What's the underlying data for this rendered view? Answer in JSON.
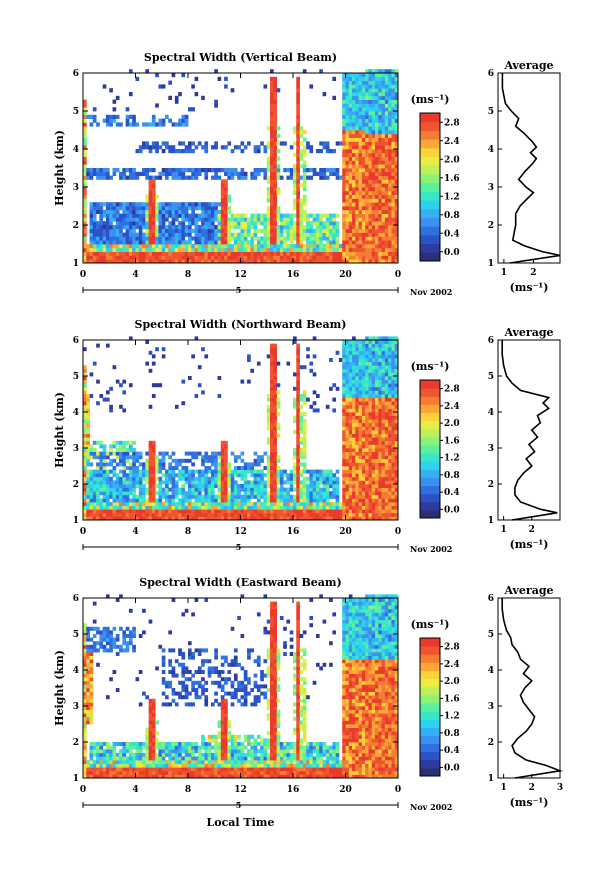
{
  "figure": {
    "date_label": "Nov 2002",
    "x_axis_title": "Local Time",
    "date_marker": "5",
    "colorbar_unit": "(ms⁻¹)"
  },
  "colors": {
    "scale": [
      "#2b2f73",
      "#2e3a9e",
      "#2c52c8",
      "#2f70e0",
      "#3c90ef",
      "#36b0f4",
      "#2dd3ee",
      "#39e7c8",
      "#5af0a0",
      "#8df278",
      "#bff05c",
      "#e6ee46",
      "#fbd23a",
      "#fba737",
      "#f57d33",
      "#ee5530",
      "#e93a2c"
    ],
    "low": "#ffffff"
  },
  "chart_data": [
    {
      "type": "heatmap",
      "title": "Spectral Width (Vertical Beam)",
      "ylabel": "Height (km)",
      "xlim": [
        0,
        24
      ],
      "ylim": [
        1,
        6
      ],
      "xticks": [
        "0",
        "4",
        "8",
        "12",
        "16",
        "20",
        "0"
      ],
      "yticks": [
        "1",
        "2",
        "3",
        "4",
        "5",
        "6"
      ],
      "colorbar": {
        "ticks": [
          "0.0",
          "0.4",
          "0.8",
          "1.2",
          "1.6",
          "2.0",
          "2.4",
          "2.8"
        ],
        "range": [
          0,
          2.8
        ]
      },
      "average": {
        "title": "Average",
        "xlabel": "(ms⁻¹)",
        "xticks": [
          "1",
          "2"
        ],
        "xlim": [
          0.8,
          2.9
        ],
        "profile": [
          [
            1.0,
            1.2
          ],
          [
            1.2,
            2.9
          ],
          [
            1.3,
            2.3
          ],
          [
            1.45,
            1.7
          ],
          [
            1.6,
            1.3
          ],
          [
            1.8,
            1.35
          ],
          [
            2.0,
            1.4
          ],
          [
            2.3,
            1.4
          ],
          [
            2.5,
            1.55
          ],
          [
            2.7,
            1.8
          ],
          [
            2.85,
            2.0
          ],
          [
            3.0,
            1.75
          ],
          [
            3.2,
            1.5
          ],
          [
            3.4,
            1.7
          ],
          [
            3.6,
            1.95
          ],
          [
            3.75,
            2.1
          ],
          [
            3.9,
            1.9
          ],
          [
            4.05,
            2.1
          ],
          [
            4.2,
            1.95
          ],
          [
            4.4,
            1.7
          ],
          [
            4.6,
            1.4
          ],
          [
            4.8,
            1.5
          ],
          [
            5.0,
            1.25
          ],
          [
            5.2,
            1.05
          ],
          [
            5.4,
            1.0
          ],
          [
            5.6,
            0.95
          ],
          [
            6.0,
            0.95
          ]
        ]
      }
    },
    {
      "type": "heatmap",
      "title": "Spectral Width (Northward Beam)",
      "ylabel": "Height (km)",
      "xlim": [
        0,
        24
      ],
      "ylim": [
        1,
        6
      ],
      "xticks": [
        "0",
        "4",
        "8",
        "12",
        "16",
        "20",
        "0"
      ],
      "yticks": [
        "1",
        "2",
        "3",
        "4",
        "5",
        "6"
      ],
      "colorbar": {
        "ticks": [
          "0.0",
          "0.4",
          "0.8",
          "1.2",
          "1.6",
          "2.0",
          "2.4",
          "2.8"
        ],
        "range": [
          0,
          2.8
        ]
      },
      "average": {
        "title": "Average",
        "xlabel": "(ms⁻¹)",
        "xticks": [
          "1",
          "2"
        ],
        "xlim": [
          0.8,
          3.0
        ],
        "profile": [
          [
            1.0,
            1.3
          ],
          [
            1.2,
            2.9
          ],
          [
            1.3,
            2.3
          ],
          [
            1.5,
            1.6
          ],
          [
            1.7,
            1.4
          ],
          [
            1.9,
            1.4
          ],
          [
            2.1,
            1.5
          ],
          [
            2.3,
            1.7
          ],
          [
            2.5,
            2.0
          ],
          [
            2.7,
            1.8
          ],
          [
            2.9,
            2.1
          ],
          [
            3.1,
            1.9
          ],
          [
            3.3,
            2.2
          ],
          [
            3.5,
            2.0
          ],
          [
            3.7,
            2.3
          ],
          [
            3.9,
            2.2
          ],
          [
            4.1,
            2.6
          ],
          [
            4.25,
            2.4
          ],
          [
            4.4,
            2.6
          ],
          [
            4.6,
            1.6
          ],
          [
            4.8,
            1.3
          ],
          [
            5.0,
            1.1
          ],
          [
            5.3,
            1.0
          ],
          [
            5.6,
            0.95
          ],
          [
            6.0,
            0.95
          ]
        ]
      }
    },
    {
      "type": "heatmap",
      "title": "Spectral Width (Eastward Beam)",
      "ylabel": "Height (km)",
      "xlim": [
        0,
        24
      ],
      "ylim": [
        1,
        6
      ],
      "xticks": [
        "0",
        "4",
        "8",
        "12",
        "16",
        "20",
        "0"
      ],
      "yticks": [
        "1",
        "2",
        "3",
        "4",
        "5",
        "6"
      ],
      "colorbar": {
        "ticks": [
          "0.0",
          "0.4",
          "0.8",
          "1.2",
          "1.6",
          "2.0",
          "2.4",
          "2.8"
        ],
        "range": [
          0,
          2.8
        ]
      },
      "average": {
        "title": "Average",
        "xlabel": "(ms⁻¹)",
        "xticks": [
          "1",
          "2",
          "3"
        ],
        "xlim": [
          0.8,
          3.0
        ],
        "profile": [
          [
            1.0,
            1.4
          ],
          [
            1.2,
            3.0
          ],
          [
            1.35,
            2.5
          ],
          [
            1.5,
            1.8
          ],
          [
            1.7,
            1.4
          ],
          [
            1.9,
            1.3
          ],
          [
            2.1,
            1.5
          ],
          [
            2.3,
            1.8
          ],
          [
            2.5,
            2.0
          ],
          [
            2.7,
            2.1
          ],
          [
            2.9,
            1.9
          ],
          [
            3.1,
            1.7
          ],
          [
            3.3,
            1.6
          ],
          [
            3.5,
            1.75
          ],
          [
            3.7,
            2.0
          ],
          [
            3.9,
            1.7
          ],
          [
            4.1,
            1.9
          ],
          [
            4.3,
            1.6
          ],
          [
            4.5,
            1.5
          ],
          [
            4.7,
            1.3
          ],
          [
            4.9,
            1.25
          ],
          [
            5.1,
            1.1
          ],
          [
            5.4,
            1.0
          ],
          [
            5.7,
            0.95
          ],
          [
            6.0,
            0.95
          ]
        ]
      }
    }
  ]
}
